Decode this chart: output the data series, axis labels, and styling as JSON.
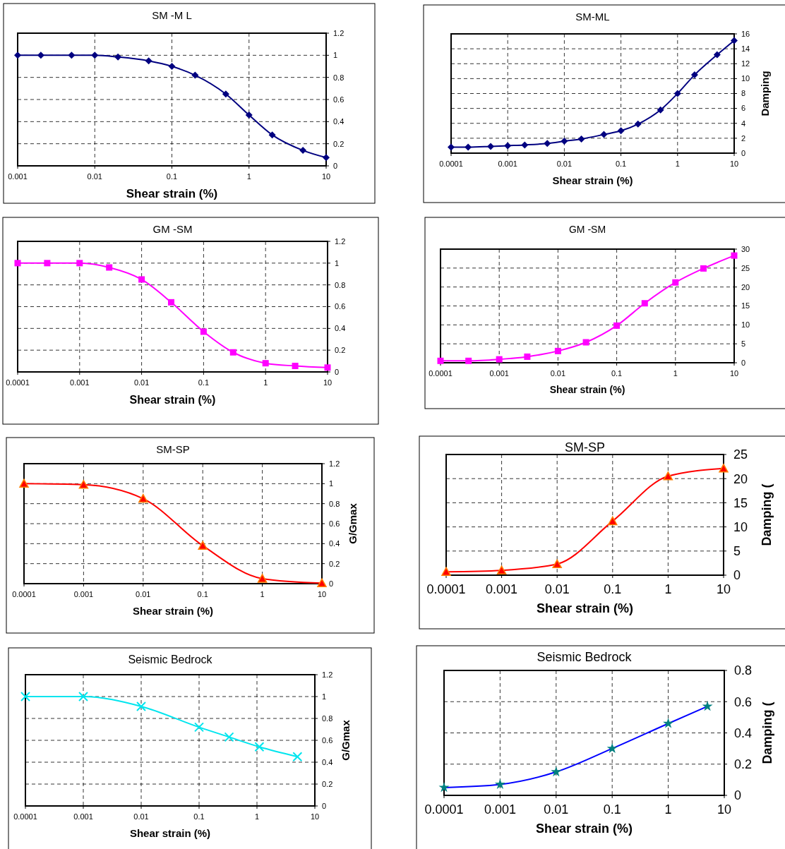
{
  "chart_data": [
    {
      "type": "line",
      "title": "SM -M L",
      "xlabel": "Shear strain (%)",
      "log": "x",
      "grid": true,
      "marker": "diamond",
      "line_style": "solid",
      "xlim": [
        0.001,
        10
      ],
      "xticks": [
        0.001,
        0.01,
        0.1,
        1,
        10
      ],
      "ylim": [
        0,
        1.2
      ],
      "yticks": [
        0,
        0.2,
        0.4,
        0.6,
        0.8,
        1,
        1.2
      ],
      "x": [
        0.001,
        0.002,
        0.005,
        0.01,
        0.02,
        0.05,
        0.1,
        0.2,
        0.5,
        1,
        2,
        5,
        10
      ],
      "series": [
        {
          "color": "#000080",
          "values": [
            1,
            1,
            1,
            1,
            0.985,
            0.95,
            0.9,
            0.82,
            0.65,
            0.46,
            0.28,
            0.14,
            0.075
          ]
        }
      ]
    },
    {
      "type": "line",
      "title": "SM-ML",
      "xlabel": "Shear strain (%)",
      "ylabel": "Damping",
      "log": "x",
      "grid": true,
      "marker": "diamond",
      "line_style": "solid",
      "xlim": [
        0.0001,
        10
      ],
      "xticks": [
        0.0001,
        0.001,
        0.01,
        0.1,
        1,
        10
      ],
      "ylim": [
        0,
        16
      ],
      "yticks": [
        0,
        2,
        4,
        6,
        8,
        10,
        12,
        14,
        16
      ],
      "x": [
        0.0001,
        0.0002,
        0.0005,
        0.001,
        0.002,
        0.005,
        0.01,
        0.02,
        0.05,
        0.1,
        0.2,
        0.5,
        1,
        2,
        5,
        10
      ],
      "series": [
        {
          "color": "#000080",
          "values": [
            0.8,
            0.8,
            0.9,
            1.0,
            1.1,
            1.3,
            1.6,
            1.9,
            2.5,
            3.0,
            3.9,
            5.8,
            8.0,
            10.5,
            13.2,
            15.1
          ]
        }
      ]
    },
    {
      "type": "line",
      "title": "GM -SM",
      "xlabel": "Shear strain (%)",
      "log": "x",
      "grid": true,
      "marker": "square",
      "line_style": "solid",
      "xlim": [
        0.0001,
        10
      ],
      "xticks": [
        0.0001,
        0.001,
        0.01,
        0.1,
        1,
        10
      ],
      "ylim": [
        0,
        1.2
      ],
      "yticks": [
        0,
        0.2,
        0.4,
        0.6,
        0.8,
        1,
        1.2
      ],
      "x": [
        0.0001,
        0.0003,
        0.001,
        0.003,
        0.01,
        0.03,
        0.1,
        0.3,
        1,
        3,
        10
      ],
      "series": [
        {
          "color": "#ff00ff",
          "values": [
            1,
            1,
            1,
            0.96,
            0.85,
            0.64,
            0.37,
            0.18,
            0.08,
            0.055,
            0.04
          ]
        }
      ]
    },
    {
      "type": "line",
      "title": "GM -SM",
      "xlabel": "Shear strain (%)",
      "log": "x",
      "grid": true,
      "marker": "square",
      "line_style": "solid",
      "xlim": [
        0.0001,
        10
      ],
      "xticks": [
        0.0001,
        0.001,
        0.01,
        0.1,
        1,
        10
      ],
      "ylim": [
        0,
        30
      ],
      "yticks": [
        0,
        5,
        10,
        15,
        20,
        25,
        30
      ],
      "x": [
        0.0001,
        0.0003,
        0.001,
        0.003,
        0.01,
        0.03,
        0.1,
        0.3,
        1,
        3,
        10
      ],
      "series": [
        {
          "color": "#ff00ff",
          "values": [
            0.5,
            0.5,
            0.9,
            1.6,
            3.1,
            5.4,
            9.8,
            15.7,
            21.2,
            24.9,
            28.3
          ]
        }
      ]
    },
    {
      "type": "line",
      "title": "SM-SP",
      "xlabel": "Shear strain (%)",
      "ylabel": "G/Gmax",
      "log": "x",
      "grid": true,
      "marker": "triangle",
      "line_style": "solid",
      "xlim": [
        0.0001,
        10
      ],
      "xticks": [
        0.0001,
        0.001,
        0.01,
        0.1,
        1,
        10
      ],
      "ylim": [
        0,
        1.2
      ],
      "yticks": [
        0,
        0.2,
        0.4,
        0.6,
        0.8,
        1,
        1.2
      ],
      "x": [
        0.0001,
        0.001,
        0.01,
        0.1,
        1,
        10
      ],
      "series": [
        {
          "color": "#ff0000",
          "values": [
            1,
            0.99,
            0.85,
            0.38,
            0.05,
            0.005
          ]
        }
      ]
    },
    {
      "type": "line",
      "title": "SM-SP",
      "xlabel": "Shear strain (%)",
      "ylabel": "Damping (",
      "log": "x",
      "grid": true,
      "marker": "triangle",
      "line_style": "solid",
      "xlim": [
        0.0001,
        10
      ],
      "xticks": [
        0.0001,
        0.001,
        0.01,
        0.1,
        1,
        10
      ],
      "ylim": [
        0,
        25
      ],
      "yticks": [
        0,
        5,
        10,
        15,
        20,
        25
      ],
      "x": [
        0.0001,
        0.001,
        0.01,
        0.1,
        1,
        10
      ],
      "series": [
        {
          "color": "#ff0000",
          "values": [
            0.7,
            1.0,
            2.3,
            11.2,
            20.5,
            22.1
          ]
        }
      ]
    },
    {
      "type": "line",
      "title": "Seismic Bedrock",
      "xlabel": "Shear strain (%)",
      "ylabel": "G/Gmax",
      "log": "x",
      "grid": true,
      "marker": "cross",
      "line_style": "solid",
      "xlim": [
        0.0001,
        10
      ],
      "xticks": [
        0.0001,
        0.001,
        0.01,
        0.1,
        1,
        10
      ],
      "ylim": [
        0,
        1.2
      ],
      "yticks": [
        0,
        0.2,
        0.4,
        0.6,
        0.8,
        1,
        1.2
      ],
      "x": [
        0.0001,
        0.001,
        0.01,
        0.1,
        0.33,
        1.1,
        5
      ],
      "series": [
        {
          "color": "#00e5ee",
          "values": [
            1,
            1,
            0.91,
            0.72,
            0.63,
            0.54,
            0.45
          ]
        }
      ]
    },
    {
      "type": "line",
      "title": "Seismic Bedrock",
      "xlabel": "Shear strain (%)",
      "ylabel": "Damping (",
      "log": "x",
      "grid": true,
      "marker": "star",
      "line_style": "solid",
      "xlim": [
        0.0001,
        10
      ],
      "xticks": [
        0.0001,
        0.001,
        0.01,
        0.1,
        1,
        10
      ],
      "ylim": [
        0,
        0.8
      ],
      "yticks": [
        0,
        0.2,
        0.4,
        0.6,
        0.8
      ],
      "x": [
        0.0001,
        0.001,
        0.01,
        0.1,
        1,
        5
      ],
      "series": [
        {
          "color": "#0000ff",
          "values": [
            0.05,
            0.07,
            0.15,
            0.3,
            0.46,
            0.57
          ]
        }
      ]
    }
  ]
}
